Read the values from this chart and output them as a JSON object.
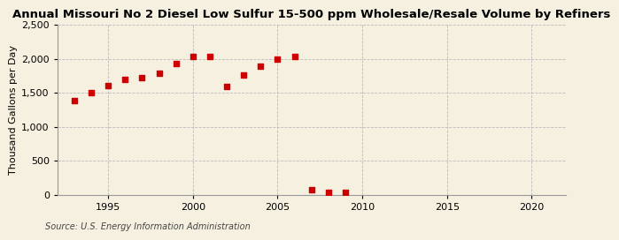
{
  "title": "Annual Missouri No 2 Diesel Low Sulfur 15-500 ppm Wholesale/Resale Volume by Refiners",
  "ylabel": "Thousand Gallons per Day",
  "source": "Source: U.S. Energy Information Administration",
  "background_color": "#f5f0e0",
  "years": [
    1993,
    1994,
    1995,
    1996,
    1997,
    1998,
    1999,
    2000,
    2001,
    2002,
    2003,
    2004,
    2005,
    2006,
    2007,
    2008,
    2009
  ],
  "values": [
    1380,
    1500,
    1610,
    1700,
    1720,
    1790,
    1930,
    2030,
    2040,
    1600,
    1760,
    1890,
    2000,
    2040,
    80,
    30,
    40
  ],
  "marker_color": "#cc0000",
  "marker_size": 4,
  "xlim": [
    1992,
    2022
  ],
  "ylim": [
    0,
    2500
  ],
  "yticks": [
    0,
    500,
    1000,
    1500,
    2000,
    2500
  ],
  "xticks": [
    1995,
    2000,
    2005,
    2010,
    2015,
    2020
  ],
  "grid_color": "#bbbbbb",
  "title_fontsize": 9.5,
  "axis_fontsize": 8,
  "source_fontsize": 7
}
